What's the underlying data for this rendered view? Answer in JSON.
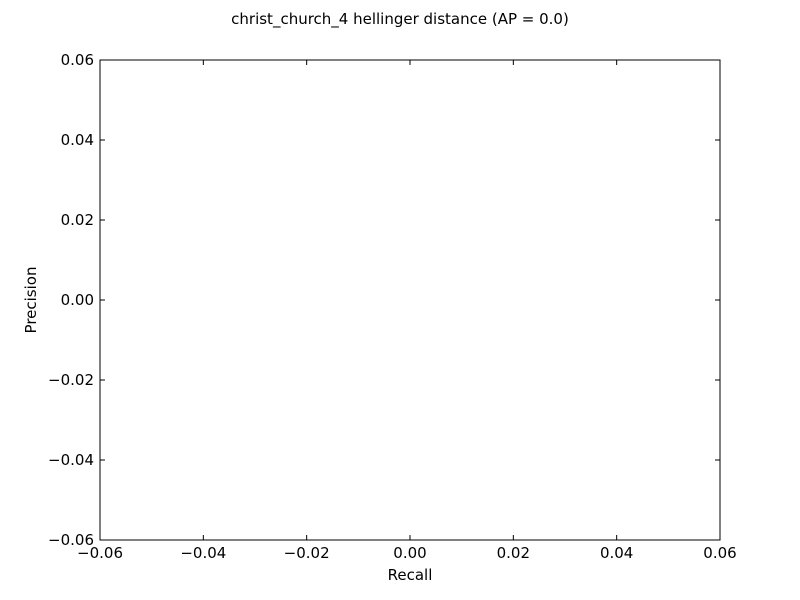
{
  "chart_data": {
    "type": "line",
    "title": "christ_church_4 hellinger distance  (AP = 0.0)",
    "xlabel": "Recall",
    "ylabel": "Precision",
    "xlim": [
      -0.06,
      0.06
    ],
    "ylim": [
      -0.06,
      0.06
    ],
    "x_ticks": [
      -0.06,
      -0.04,
      -0.02,
      0.0,
      0.02,
      0.04,
      0.06
    ],
    "x_tick_labels": [
      "−0.06",
      "−0.04",
      "−0.02",
      "0.00",
      "0.02",
      "0.04",
      "0.06"
    ],
    "y_ticks": [
      0.06,
      0.04,
      0.02,
      0.0,
      -0.02,
      -0.04,
      -0.06
    ],
    "y_tick_labels": [
      "0.06",
      "0.04",
      "0.02",
      "0.00",
      "−0.02",
      "−0.04",
      "−0.06"
    ],
    "series": [
      {
        "x": [],
        "y": []
      }
    ],
    "grid": false,
    "legend": "none"
  }
}
